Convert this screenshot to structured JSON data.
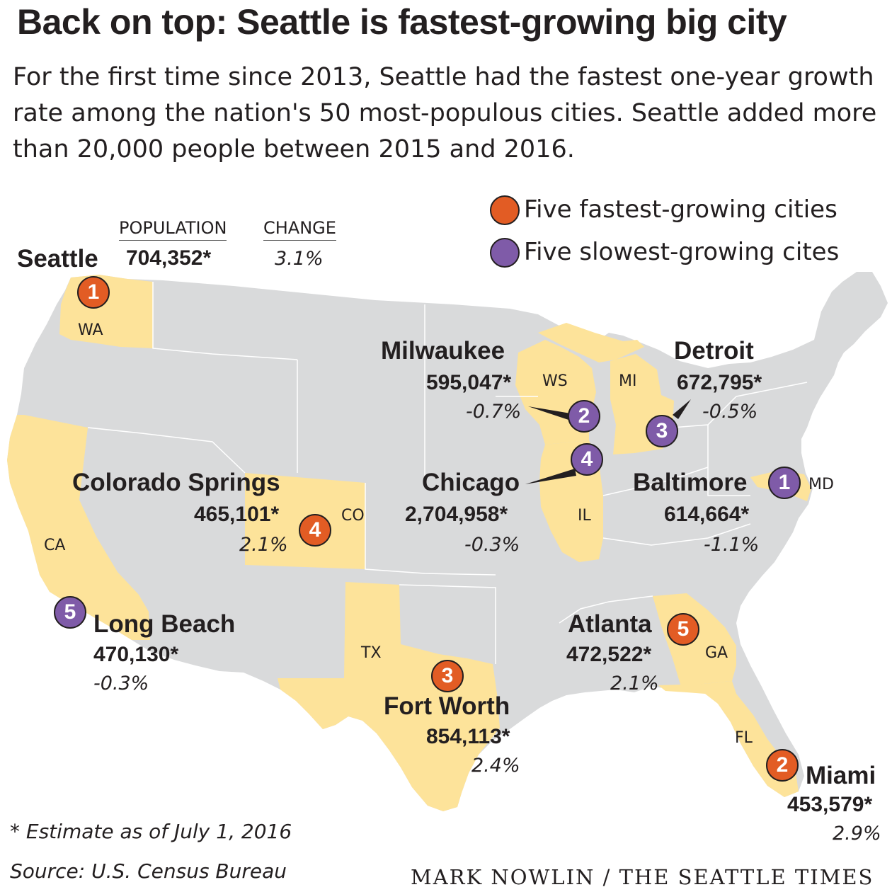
{
  "title": "Back on top: Seattle is fastest-growing big city",
  "subtitle": "For the first time since 2013, Seattle had the fastest one-year growth rate among the nation's 50 most-populous cities. Seattle added more than 20,000 people between 2015 and 2016.",
  "legend": {
    "fastest": "Five fastest-growing cities",
    "slowest": "Five slowest-growing cites"
  },
  "headers": {
    "population": "POPULATION",
    "change": "CHANGE"
  },
  "colors": {
    "fastest": "#e25c24",
    "slowest": "#7f5ba8",
    "highlight_state": "#fde39a",
    "map_gray": "#d9dadb"
  },
  "cities": {
    "seattle": {
      "name": "Seattle",
      "rank": "1",
      "group": "fastest",
      "population": "704,352*",
      "change": "3.1%",
      "state": "WA"
    },
    "miami": {
      "name": "Miami",
      "rank": "2",
      "group": "fastest",
      "population": "453,579*",
      "change": "2.9%",
      "state": "FL"
    },
    "fortworth": {
      "name": "Fort Worth",
      "rank": "3",
      "group": "fastest",
      "population": "854,113*",
      "change": "2.4%",
      "state": "TX"
    },
    "colorado": {
      "name": "Colorado Springs",
      "rank": "4",
      "group": "fastest",
      "population": "465,101*",
      "change": "2.1%",
      "state": "CO"
    },
    "atlanta": {
      "name": "Atlanta",
      "rank": "5",
      "group": "fastest",
      "population": "472,522*",
      "change": "2.1%",
      "state": "GA"
    },
    "baltimore": {
      "name": "Baltimore",
      "rank": "1",
      "group": "slowest",
      "population": "614,664*",
      "change": "-1.1%",
      "state": "MD"
    },
    "milwaukee": {
      "name": "Milwaukee",
      "rank": "2",
      "group": "slowest",
      "population": "595,047*",
      "change": "-0.7%",
      "state": "WS"
    },
    "detroit": {
      "name": "Detroit",
      "rank": "3",
      "group": "slowest",
      "population": "672,795*",
      "change": "-0.5%",
      "state": "MI"
    },
    "chicago": {
      "name": "Chicago",
      "rank": "4",
      "group": "slowest",
      "population": "2,704,958*",
      "change": "-0.3%",
      "state": "IL"
    },
    "longbeach": {
      "name": "Long Beach",
      "rank": "5",
      "group": "slowest",
      "population": "470,130*",
      "change": "-0.3%",
      "state": "CA"
    }
  },
  "footnote": "* Estimate as of July 1, 2016",
  "source": "Source: U.S. Census Bureau",
  "credit": "MARK NOWLIN / THE SEATTLE TIMES"
}
